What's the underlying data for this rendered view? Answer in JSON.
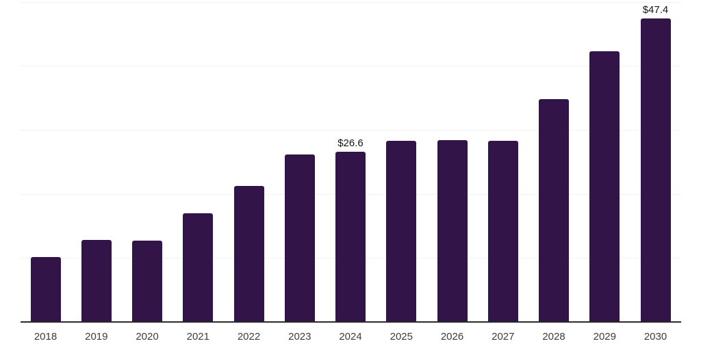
{
  "chart_data": {
    "type": "bar",
    "title": "",
    "xlabel": "",
    "ylabel": "",
    "categories": [
      "2018",
      "2019",
      "2020",
      "2021",
      "2022",
      "2023",
      "2024",
      "2025",
      "2026",
      "2027",
      "2028",
      "2029",
      "2030"
    ],
    "values": [
      10.1,
      12.8,
      12.7,
      17.0,
      21.2,
      26.1,
      26.6,
      28.3,
      28.4,
      28.3,
      34.8,
      42.3,
      47.4
    ],
    "labeled_points": [
      {
        "category": "2024",
        "label": "$26.6"
      },
      {
        "category": "2030",
        "label": "$47.4"
      }
    ],
    "ylim": [
      0,
      50
    ],
    "gridline_values": [
      10,
      20,
      30,
      40,
      50
    ],
    "grid": "horizontal-only",
    "legend": "none",
    "colors": {
      "bar": "#321449",
      "axis_line": "#2b2b2b",
      "gridline": "#f2f2f2",
      "tick_label": "#3c3c3c",
      "value_label": "#141414",
      "background": "#ffffff"
    }
  }
}
